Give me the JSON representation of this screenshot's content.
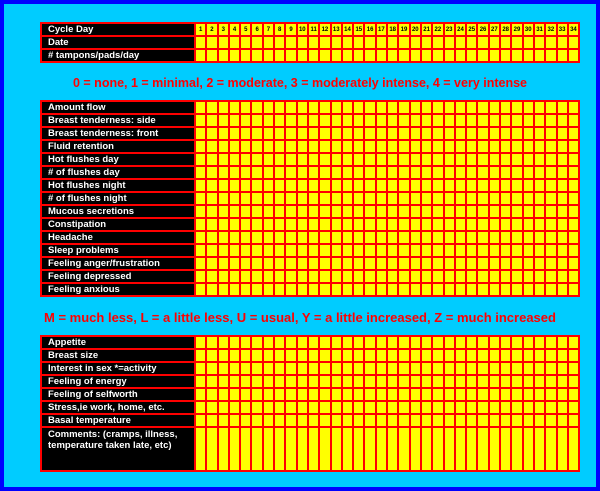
{
  "table1": {
    "rows": [
      "Cycle Day",
      "Date",
      "# tampons/pads/day"
    ],
    "day_numbers": [
      "1",
      "2",
      "3",
      "4",
      "5",
      "6",
      "7",
      "8",
      "9",
      "10",
      "11",
      "12",
      "13",
      "14",
      "15",
      "16",
      "17",
      "18",
      "19",
      "20",
      "21",
      "22",
      "23",
      "24",
      "25",
      "26",
      "27",
      "28",
      "29",
      "30",
      "31",
      "32",
      "33",
      "34"
    ]
  },
  "scale1": "0 = none, 1 = minimal, 2 = moderate, 3 = moderately intense, 4 = very intense",
  "table2": {
    "rows": [
      "Amount flow",
      "Breast tenderness: side",
      "Breast tenderness: front",
      "Fluid retention",
      "Hot flushes day",
      "# of flushes day",
      "Hot flushes night",
      "# of flushes night",
      "Mucous secretions",
      "Constipation",
      "Headache",
      "Sleep problems",
      "Feeling anger/frustration",
      "Feeling depressed",
      "Feeling anxious"
    ]
  },
  "scale2": "M = much less, L = a little less, U = usual, Y = a little increased, Z = much increased",
  "table3": {
    "rows": [
      "Appetite",
      "Breast size",
      "Interest in sex *=activity",
      "Feeling of energy",
      "Feeling of selfworth",
      "Stress,ie work, home, etc.",
      "Basal temperature"
    ],
    "comments_label": "Comments: (cramps, illness, temperature taken late, etc)"
  },
  "colors": {
    "outer_border": "#0000ff",
    "background": "#00ccff",
    "grid_lines": "#ff0000",
    "cell_fill": "#ffff00",
    "label_fill": "#000000",
    "scale_text": "#ff0000"
  }
}
